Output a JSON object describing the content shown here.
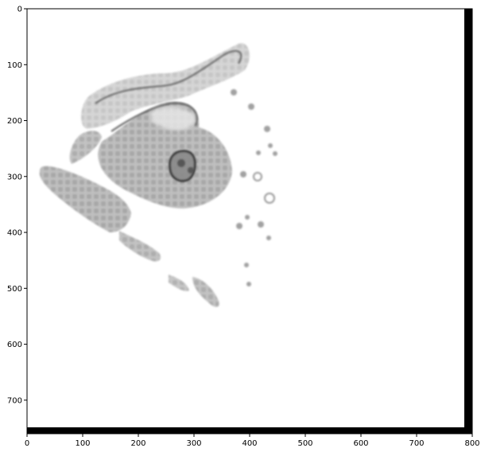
{
  "figure": {
    "type": "image-with-axes",
    "x_axis": {
      "ticks": [
        "0",
        "100",
        "200",
        "300",
        "400",
        "500",
        "600",
        "700",
        "800"
      ],
      "range": [
        0,
        800
      ]
    },
    "y_axis": {
      "ticks": [
        "0",
        "100",
        "200",
        "300",
        "400",
        "500",
        "600",
        "700"
      ],
      "range": [
        0,
        760
      ]
    },
    "image": {
      "content": "grayscale-tissue-section",
      "background": "#ffffff",
      "tissue_gray": "#9a9a9a",
      "border_right": "#000000",
      "border_bottom": "#000000"
    }
  }
}
